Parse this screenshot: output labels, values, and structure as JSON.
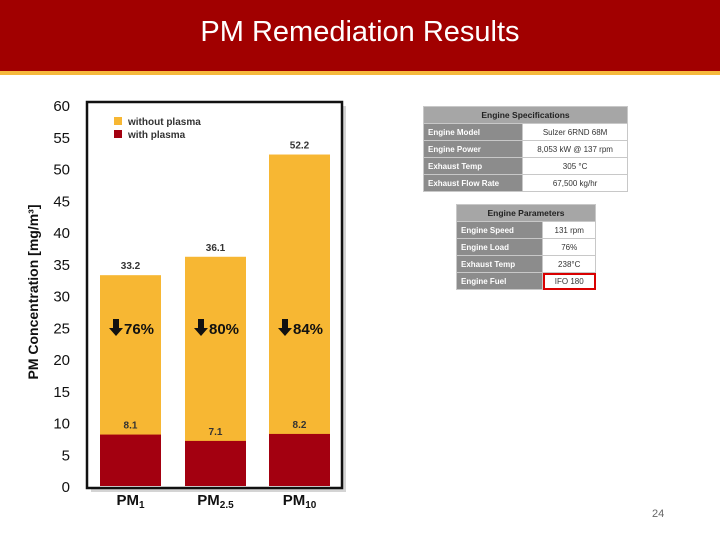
{
  "title": "PM Remediation Results",
  "page_number": "24",
  "colors": {
    "title_bar": "#a10000",
    "accent_line": "#f5b93c",
    "without_plasma": "#f7b733",
    "with_plasma": "#a30010"
  },
  "chart_data": {
    "type": "bar",
    "stacked": true,
    "title": "",
    "xlabel": "",
    "ylabel": "PM Concentration [mg/m³]",
    "ylim": [
      0,
      60
    ],
    "yticks": [
      0,
      5,
      10,
      15,
      20,
      25,
      30,
      35,
      40,
      45,
      50,
      55,
      60
    ],
    "legend_placement": "top-left",
    "categories": [
      {
        "base": "PM",
        "sub": "1"
      },
      {
        "base": "PM",
        "sub": "2.5"
      },
      {
        "base": "PM",
        "sub": "10"
      }
    ],
    "series": [
      {
        "name": "without plasma",
        "color": "#f7b733",
        "values": [
          33.2,
          36.1,
          52.2
        ],
        "labels": [
          "33.2",
          "36.1",
          "52.2"
        ]
      },
      {
        "name": "with plasma",
        "color": "#a30010",
        "values": [
          8.1,
          7.1,
          8.2
        ],
        "labels": [
          "8.1",
          "7.1",
          "8.2"
        ]
      }
    ],
    "reductions": [
      "76%",
      "80%",
      "84%"
    ]
  },
  "engine_specs": {
    "header": "Engine Specifications",
    "rows": [
      {
        "key": "Engine Model",
        "value": "Sulzer 6RND 68M"
      },
      {
        "key": "Engine Power",
        "value": "8,053 kW @ 137 rpm"
      },
      {
        "key": "Exhaust Temp",
        "value": "305 °C"
      },
      {
        "key": "Exhaust Flow Rate",
        "value": "67,500 kg/hr"
      }
    ]
  },
  "engine_params": {
    "header": "Engine Parameters",
    "rows": [
      {
        "key": "Engine Speed",
        "value": "131 rpm"
      },
      {
        "key": "Engine Load",
        "value": "76%"
      },
      {
        "key": "Exhaust Temp",
        "value": "238°C"
      },
      {
        "key": "Engine Fuel",
        "value": "IFO 180"
      }
    ]
  }
}
